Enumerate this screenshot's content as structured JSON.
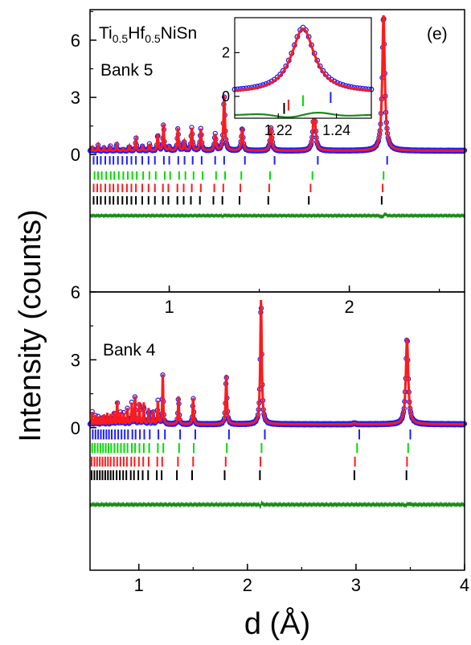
{
  "figure": {
    "ylabel": "Intensity (counts)",
    "xlabel": "d (Å)",
    "colors": {
      "observed": "#1f1fff",
      "calculated": "#ff1a1a",
      "difference": "#1a8a1a",
      "ticks": [
        "#1f1fff",
        "#00dd00",
        "#ff1a1a",
        "#000000"
      ]
    }
  },
  "chart_data": [
    {
      "type": "scatter",
      "panel": "top",
      "annotation": "Bank 5",
      "panel_label": "(e)",
      "compound": {
        "t1": "Ti",
        "s1": "0.5",
        "t2": "Hf",
        "s2": "0.5",
        "t3": "NiSn"
      },
      "x_axis": {
        "range": [
          0.56,
          2.64
        ],
        "ticks": [
          1,
          2
        ],
        "tick_labels": [
          "1",
          "2"
        ],
        "position": "bottom"
      },
      "y_axis": {
        "range": [
          -7.2,
          7.6
        ],
        "ticks": [
          0,
          3,
          6
        ],
        "tick_labels": [
          "0",
          "3",
          "6"
        ]
      },
      "background": 0.2,
      "peaks": [
        {
          "x": 0.573,
          "y": 0.35
        },
        {
          "x": 0.604,
          "y": 0.5
        },
        {
          "x": 0.637,
          "y": 0.35
        },
        {
          "x": 0.672,
          "y": 0.45
        },
        {
          "x": 0.708,
          "y": 0.55
        },
        {
          "x": 0.744,
          "y": 0.3
        },
        {
          "x": 0.778,
          "y": 0.45
        },
        {
          "x": 0.815,
          "y": 0.85
        },
        {
          "x": 0.852,
          "y": 0.45
        },
        {
          "x": 0.89,
          "y": 0.55
        },
        {
          "x": 0.936,
          "y": 1.05
        },
        {
          "x": 0.968,
          "y": 1.6
        },
        {
          "x": 1.0,
          "y": 0.4
        },
        {
          "x": 1.048,
          "y": 1.35
        },
        {
          "x": 1.083,
          "y": 0.65
        },
        {
          "x": 1.125,
          "y": 1.4
        },
        {
          "x": 1.175,
          "y": 1.35
        },
        {
          "x": 1.255,
          "y": 1.05
        },
        {
          "x": 1.305,
          "y": 3.1
        },
        {
          "x": 1.405,
          "y": 1.4
        },
        {
          "x": 1.565,
          "y": 1.4
        },
        {
          "x": 1.805,
          "y": 2.9
        },
        {
          "x": 2.19,
          "y": 7.3
        }
      ],
      "difference_offset": -3.2,
      "tick_rows": [
        {
          "offset": -0.3,
          "positions": [
            0.58,
            0.6,
            0.62,
            0.645,
            0.67,
            0.69,
            0.715,
            0.74,
            0.765,
            0.79,
            0.815,
            0.85,
            0.885,
            0.92,
            0.97,
            1.0,
            1.05,
            1.085,
            1.13,
            1.18,
            1.255,
            1.305,
            1.42,
            1.585,
            1.825,
            2.21
          ]
        },
        {
          "offset": -1.1,
          "positions": [
            0.585,
            0.605,
            0.625,
            0.65,
            0.675,
            0.695,
            0.72,
            0.745,
            0.77,
            0.795,
            0.82,
            0.855,
            0.89,
            0.925,
            0.975,
            1.005,
            1.055,
            1.09,
            1.135,
            1.185,
            1.26,
            1.31,
            1.4,
            1.56,
            1.795,
            2.19
          ]
        },
        {
          "offset": -1.75,
          "positions": [
            0.58,
            0.6,
            0.62,
            0.645,
            0.67,
            0.69,
            0.715,
            0.74,
            0.765,
            0.79,
            0.815,
            0.85,
            0.885,
            0.92,
            0.965,
            0.995,
            1.045,
            1.08,
            1.125,
            1.175,
            1.25,
            1.3,
            1.395,
            1.555,
            1.785,
            2.185
          ]
        },
        {
          "offset": -2.4,
          "positions": [
            0.58,
            0.6,
            0.62,
            0.645,
            0.67,
            0.69,
            0.715,
            0.74,
            0.765,
            0.79,
            0.815,
            0.85,
            0.885,
            0.92,
            0.965,
            0.995,
            1.045,
            1.08,
            1.12,
            1.17,
            1.245,
            1.295,
            1.39,
            1.55,
            1.775,
            2.18
          ]
        }
      ],
      "inset": {
        "x_axis": {
          "range": [
            1.205,
            1.252
          ],
          "ticks": [
            1.22,
            1.24
          ],
          "tick_labels": [
            "1.22",
            "1.24"
          ]
        },
        "y_axis": {
          "range": [
            -1.0,
            3.6
          ],
          "ticks": [
            0,
            2
          ],
          "tick_labels": [
            "0",
            "2"
          ]
        },
        "peak": {
          "x": 1.2285,
          "y": 3.1
        },
        "tick_marks": [
          {
            "x": 1.238,
            "y": -0.05
          },
          {
            "x": 1.2285,
            "y": -0.2
          },
          {
            "x": 1.2235,
            "y": -0.4
          },
          {
            "x": 1.222,
            "y": -0.55
          }
        ],
        "difference_offset": -0.85
      }
    },
    {
      "type": "scatter",
      "panel": "bottom",
      "annotation": "Bank 4",
      "x_axis": {
        "range": [
          0.55,
          4.0
        ],
        "ticks": [
          1,
          2,
          3,
          4
        ],
        "tick_labels": [
          "1",
          "2",
          "3",
          "4"
        ]
      },
      "y_axis": {
        "range": [
          -6.3,
          6.0
        ],
        "ticks": [
          0,
          3,
          6
        ],
        "tick_labels": [
          "0",
          "3",
          "6"
        ]
      },
      "background": 0.15,
      "peaks": [
        {
          "x": 0.57,
          "y": 0.7
        },
        {
          "x": 0.6,
          "y": 0.6
        },
        {
          "x": 0.625,
          "y": 0.55
        },
        {
          "x": 0.655,
          "y": 0.55
        },
        {
          "x": 0.68,
          "y": 0.6
        },
        {
          "x": 0.71,
          "y": 0.65
        },
        {
          "x": 0.74,
          "y": 0.6
        },
        {
          "x": 0.77,
          "y": 0.75
        },
        {
          "x": 0.8,
          "y": 1.3
        },
        {
          "x": 0.83,
          "y": 0.7
        },
        {
          "x": 0.86,
          "y": 0.65
        },
        {
          "x": 0.895,
          "y": 0.85
        },
        {
          "x": 0.935,
          "y": 1.1
        },
        {
          "x": 0.965,
          "y": 1.45
        },
        {
          "x": 1.005,
          "y": 1.15
        },
        {
          "x": 1.045,
          "y": 1.1
        },
        {
          "x": 1.09,
          "y": 0.85
        },
        {
          "x": 1.13,
          "y": 0.75
        },
        {
          "x": 1.175,
          "y": 1.2
        },
        {
          "x": 1.22,
          "y": 2.35
        },
        {
          "x": 1.365,
          "y": 1.4
        },
        {
          "x": 1.5,
          "y": 1.3
        },
        {
          "x": 1.805,
          "y": 2.35
        },
        {
          "x": 2.125,
          "y": 5.65
        },
        {
          "x": 2.985,
          "y": 0.2
        },
        {
          "x": 3.47,
          "y": 3.95
        }
      ],
      "difference_offset": -3.4,
      "tick_rows": [
        {
          "offset": -0.3,
          "positions": [
            0.575,
            0.6,
            0.625,
            0.65,
            0.675,
            0.7,
            0.725,
            0.75,
            0.78,
            0.81,
            0.84,
            0.87,
            0.9,
            0.94,
            0.97,
            1.01,
            1.05,
            1.1,
            1.18,
            1.24,
            1.38,
            1.52,
            1.83,
            2.16,
            3.03,
            3.5
          ]
        },
        {
          "offset": -0.9,
          "positions": [
            0.57,
            0.595,
            0.62,
            0.645,
            0.67,
            0.695,
            0.72,
            0.745,
            0.775,
            0.805,
            0.835,
            0.865,
            0.895,
            0.935,
            0.965,
            1.005,
            1.045,
            1.095,
            1.175,
            1.225,
            1.37,
            1.505,
            1.81,
            2.13,
            3.01,
            3.48
          ]
        },
        {
          "offset": -1.5,
          "positions": [
            0.565,
            0.59,
            0.615,
            0.64,
            0.665,
            0.69,
            0.715,
            0.74,
            0.77,
            0.8,
            0.83,
            0.86,
            0.89,
            0.93,
            0.96,
            1.0,
            1.04,
            1.09,
            1.17,
            1.215,
            1.36,
            1.5,
            1.8,
            2.12,
            2.99,
            3.47
          ]
        },
        {
          "offset": -2.1,
          "positions": [
            0.565,
            0.59,
            0.615,
            0.64,
            0.665,
            0.69,
            0.715,
            0.74,
            0.765,
            0.795,
            0.825,
            0.855,
            0.885,
            0.925,
            0.955,
            0.995,
            1.035,
            1.085,
            1.165,
            1.21,
            1.35,
            1.49,
            1.79,
            2.115,
            2.985,
            3.465
          ]
        }
      ]
    }
  ]
}
